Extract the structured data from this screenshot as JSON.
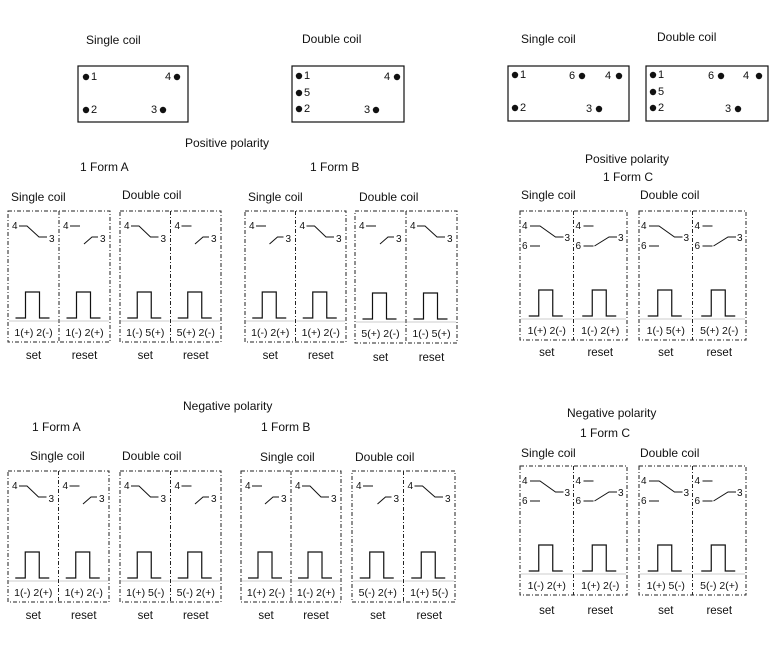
{
  "pin_views": [
    {
      "title": "Single coil",
      "pins": [
        "1",
        "4",
        "2",
        "3"
      ]
    },
    {
      "title": "Double coil",
      "pins": [
        "1",
        "4",
        "5",
        "2",
        "3"
      ]
    },
    {
      "title": "Single coil",
      "pins": [
        "1",
        "6",
        "4",
        "2",
        "3"
      ]
    },
    {
      "title": "Double coil",
      "pins": [
        "1",
        "6",
        "4",
        "5",
        "2",
        "3"
      ]
    }
  ],
  "headings": {
    "pos_polarity_ab": "Positive polarity",
    "form_a_pos": "1 Form A",
    "form_b_pos": "1 Form B",
    "pos_polarity_c": "Positive polarity",
    "form_c_pos": "1 Form C",
    "neg_polarity_ab": "Negative polarity",
    "form_a_neg": "1 Form A",
    "form_b_neg": "1 Form B",
    "neg_polarity_c": "Negative polarity",
    "form_c_neg": "1 Form C"
  },
  "contact_labels": {
    "common": "4",
    "no": "3",
    "nc": "6"
  },
  "set_label": "set",
  "reset_label": "reset",
  "groups": [
    {
      "id": "pos-a",
      "title": "Single coil",
      "form": "A",
      "pulses": [
        "1(+)  2(-)",
        "1(-)  2(+)"
      ]
    },
    {
      "id": "pos-a2",
      "title": "Double coil",
      "form": "A",
      "pulses": [
        "1(-)  5(+)",
        "5(+)  2(-)"
      ]
    },
    {
      "id": "pos-b",
      "title": "Single coil",
      "form": "B",
      "pulses": [
        "1(-)  2(+)",
        "1(+)  2(-)"
      ]
    },
    {
      "id": "pos-b2",
      "title": "Double coil",
      "form": "B",
      "pulses": [
        "5(+)  2(-)",
        "1(-)  5(+)"
      ]
    },
    {
      "id": "pos-c",
      "title": "Single coil",
      "form": "C",
      "pulses": [
        "1(+)  2(-)",
        "1(-)  2(+)"
      ]
    },
    {
      "id": "pos-c2",
      "title": "Double coil",
      "form": "C",
      "pulses": [
        "1(-)  5(+)",
        "5(+)  2(-)"
      ]
    },
    {
      "id": "neg-a",
      "title": "Single coil",
      "form": "A",
      "pulses": [
        "1(-)  2(+)",
        "1(+)  2(-)"
      ]
    },
    {
      "id": "neg-a2",
      "title": "Double coil",
      "form": "A",
      "pulses": [
        "1(+)  5(-)",
        "5(-)  2(+)"
      ]
    },
    {
      "id": "neg-b",
      "title": "Single coil",
      "form": "B",
      "pulses": [
        "1(+)  2(-)",
        "1(-)  2(+)"
      ]
    },
    {
      "id": "neg-b2",
      "title": "Double coil",
      "form": "B",
      "pulses": [
        "5(-)  2(+)",
        "1(+)  5(-)"
      ]
    },
    {
      "id": "neg-c",
      "title": "Single coil",
      "form": "C",
      "pulses": [
        "1(-)  2(+)",
        "1(+)  2(-)"
      ]
    },
    {
      "id": "neg-c2",
      "title": "Double coil",
      "form": "C",
      "pulses": [
        "1(+)  5(-)",
        "5(-)  2(+)"
      ]
    }
  ]
}
